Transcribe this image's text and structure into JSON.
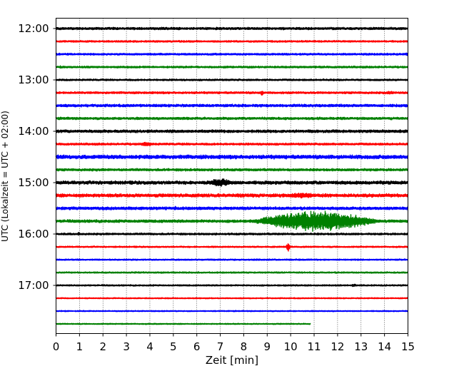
{
  "chart_data": {
    "type": "line",
    "subtype": "helicorder-seismogram",
    "title": "",
    "xlabel": "Zeit  [min]",
    "ylabel": "UTC (Lokalzeit = UTC + 02:00)",
    "xlim": [
      0,
      15
    ],
    "x_ticks": [
      "0",
      "1",
      "2",
      "3",
      "4",
      "5",
      "6",
      "7",
      "8",
      "9",
      "10",
      "11",
      "12",
      "13",
      "14",
      "15"
    ],
    "y_ticks": [
      {
        "label": "12:00",
        "row": 0
      },
      {
        "label": "13:00",
        "row": 4
      },
      {
        "label": "14:00",
        "row": 8
      },
      {
        "label": "15:00",
        "row": 12
      },
      {
        "label": "16:00",
        "row": 16
      },
      {
        "label": "17:00",
        "row": 20
      }
    ],
    "grid": "vertical dotted lines at each minute",
    "minutes_per_row": 15,
    "colors": [
      "#000000",
      "#ff0000",
      "#0000ff",
      "#008000"
    ],
    "rows": [
      {
        "start": "12:00",
        "color": "#000000",
        "noise": 0.25,
        "end_min": 15,
        "events": [
          {
            "t": 8.3,
            "amp": 0.22,
            "dur": 0.5
          }
        ]
      },
      {
        "start": "12:15",
        "color": "#ff0000",
        "noise": 0.18,
        "end_min": 15,
        "events": []
      },
      {
        "start": "12:30",
        "color": "#0000ff",
        "noise": 0.2,
        "end_min": 15,
        "events": [
          {
            "t": 14.8,
            "amp": 0.3,
            "dur": 0.3
          }
        ]
      },
      {
        "start": "12:45",
        "color": "#008000",
        "noise": 0.2,
        "end_min": 15,
        "events": [
          {
            "t": 0.1,
            "amp": 0.3,
            "dur": 0.2
          }
        ]
      },
      {
        "start": "13:00",
        "color": "#000000",
        "noise": 0.18,
        "end_min": 15,
        "events": []
      },
      {
        "start": "13:15",
        "color": "#ff0000",
        "noise": 0.22,
        "end_min": 15,
        "events": [
          {
            "t": 8.7,
            "amp": 0.6,
            "dur": 0.15
          },
          {
            "t": 14.0,
            "amp": 0.35,
            "dur": 0.5
          }
        ]
      },
      {
        "start": "13:30",
        "color": "#0000ff",
        "noise": 0.28,
        "end_min": 15,
        "events": []
      },
      {
        "start": "13:45",
        "color": "#008000",
        "noise": 0.25,
        "end_min": 15,
        "events": [
          {
            "t": 4.8,
            "amp": 0.3,
            "dur": 1.2
          }
        ]
      },
      {
        "start": "14:00",
        "color": "#000000",
        "noise": 0.3,
        "end_min": 15,
        "events": []
      },
      {
        "start": "14:15",
        "color": "#ff0000",
        "noise": 0.22,
        "end_min": 15,
        "events": [
          {
            "t": 3.5,
            "amp": 0.45,
            "dur": 0.7
          }
        ]
      },
      {
        "start": "14:30",
        "color": "#0000ff",
        "noise": 0.4,
        "end_min": 15,
        "events": [
          {
            "t": 3.5,
            "amp": 0.45,
            "dur": 0.8
          },
          {
            "t": 13.5,
            "amp": 0.45,
            "dur": 0.3
          }
        ]
      },
      {
        "start": "14:45",
        "color": "#008000",
        "noise": 0.25,
        "end_min": 15,
        "events": []
      },
      {
        "start": "15:00",
        "color": "#000000",
        "noise": 0.35,
        "end_min": 15,
        "events": [
          {
            "t": 6.4,
            "amp": 0.95,
            "dur": 1.2
          }
        ]
      },
      {
        "start": "15:15",
        "color": "#ff0000",
        "noise": 0.35,
        "end_min": 15,
        "events": [
          {
            "t": 9.8,
            "amp": 0.7,
            "dur": 1.4
          }
        ]
      },
      {
        "start": "15:30",
        "color": "#0000ff",
        "noise": 0.3,
        "end_min": 15,
        "events": [
          {
            "t": 5.0,
            "amp": 0.55,
            "dur": 0.15
          }
        ]
      },
      {
        "start": "15:45",
        "color": "#008000",
        "noise": 0.3,
        "end_min": 15,
        "events": [
          {
            "t": 8.2,
            "amp": 2.2,
            "dur": 5.8
          }
        ]
      },
      {
        "start": "16:00",
        "color": "#000000",
        "noise": 0.2,
        "end_min": 15,
        "events": [
          {
            "t": 0.9,
            "amp": 0.4,
            "dur": 0.15
          }
        ]
      },
      {
        "start": "16:15",
        "color": "#ff0000",
        "noise": 0.15,
        "end_min": 15,
        "events": [
          {
            "t": 9.8,
            "amp": 1.0,
            "dur": 0.2
          }
        ]
      },
      {
        "start": "16:30",
        "color": "#0000ff",
        "noise": 0.15,
        "end_min": 15,
        "events": []
      },
      {
        "start": "16:45",
        "color": "#008000",
        "noise": 0.15,
        "end_min": 15,
        "events": []
      },
      {
        "start": "17:00",
        "color": "#000000",
        "noise": 0.15,
        "end_min": 15,
        "events": [
          {
            "t": 12.5,
            "amp": 0.3,
            "dur": 0.4
          }
        ]
      },
      {
        "start": "17:15",
        "color": "#ff0000",
        "noise": 0.12,
        "end_min": 15,
        "events": []
      },
      {
        "start": "17:30",
        "color": "#0000ff",
        "noise": 0.12,
        "end_min": 15,
        "events": []
      },
      {
        "start": "17:45",
        "color": "#008000",
        "noise": 0.12,
        "end_min": 10.85,
        "events": []
      }
    ]
  }
}
